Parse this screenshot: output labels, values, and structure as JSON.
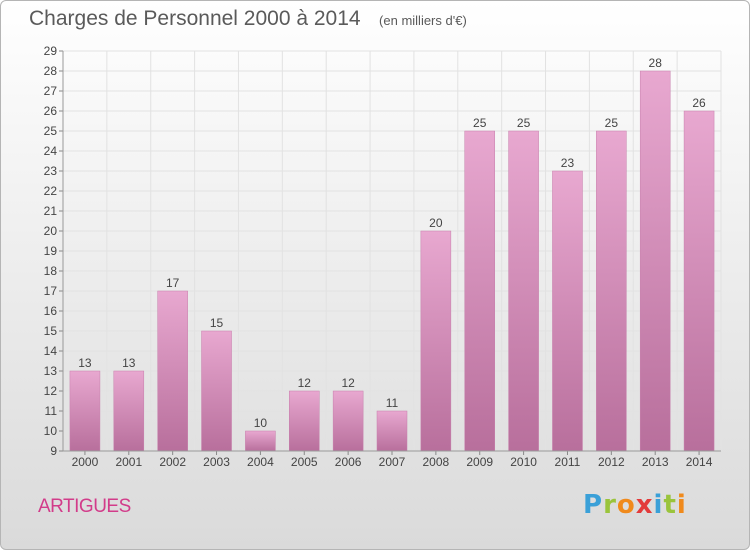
{
  "header": {
    "title": "Charges de Personnel 2000 à 2014",
    "unit": "(en milliers d'€)"
  },
  "footer": {
    "commune": "ARTIGUES",
    "logo_letters": [
      {
        "ch": "P",
        "color": "#3aa0d8"
      },
      {
        "ch": "r",
        "color": "#9ac43c"
      },
      {
        "ch": "o",
        "color": "#f08a1c"
      },
      {
        "ch": "x",
        "color": "#e33b3b"
      },
      {
        "ch": "i",
        "color": "#3aa0d8"
      },
      {
        "ch": "t",
        "color": "#9ac43c"
      },
      {
        "ch": "i",
        "color": "#f08a1c"
      }
    ]
  },
  "chart_data": {
    "type": "bar",
    "categories": [
      "2000",
      "2001",
      "2002",
      "2003",
      "2004",
      "2005",
      "2006",
      "2007",
      "2008",
      "2009",
      "2010",
      "2011",
      "2012",
      "2013",
      "2014"
    ],
    "values": [
      13,
      13,
      17,
      15,
      10,
      12,
      12,
      11,
      20,
      25,
      25,
      23,
      25,
      28,
      26
    ],
    "ylim": [
      9,
      29
    ],
    "yticks": [
      9,
      10,
      11,
      12,
      13,
      14,
      15,
      16,
      17,
      18,
      19,
      20,
      21,
      22,
      23,
      24,
      25,
      26,
      27,
      28,
      29
    ],
    "grid": true,
    "bar_color": "#d98fbd",
    "text_color": "#444444"
  }
}
